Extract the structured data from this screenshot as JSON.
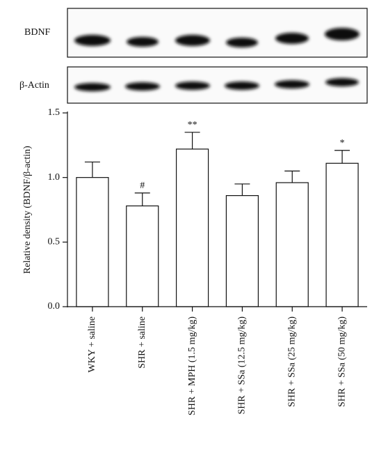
{
  "chart_data": {
    "type": "bar",
    "blots": [
      {
        "label": "BDNF"
      },
      {
        "label": "β-Actin"
      }
    ],
    "y_label": "Relative density (BDNF/β-actin)",
    "categories": [
      "WKY + saline",
      "SHR + saline",
      "SHR + MPH (1.5 mg/kg)",
      "SHR + SSa (12.5 mg/kg)",
      "SHR + SSa (25 mg/kg)",
      "SHR + SSa (50 mg/kg)"
    ],
    "values": [
      1.0,
      0.78,
      1.22,
      0.86,
      0.96,
      1.11
    ],
    "errors": [
      0.12,
      0.1,
      0.13,
      0.09,
      0.09,
      0.1
    ],
    "annotations": [
      null,
      "#",
      "**",
      null,
      null,
      "*"
    ],
    "color": "#ffffff",
    "ylim": [
      0,
      1.5
    ],
    "yticks": [
      {
        "value": 0,
        "label": "0.0"
      },
      0.5,
      {
        "value": 1,
        "label": "1.0"
      },
      1.5
    ]
  }
}
